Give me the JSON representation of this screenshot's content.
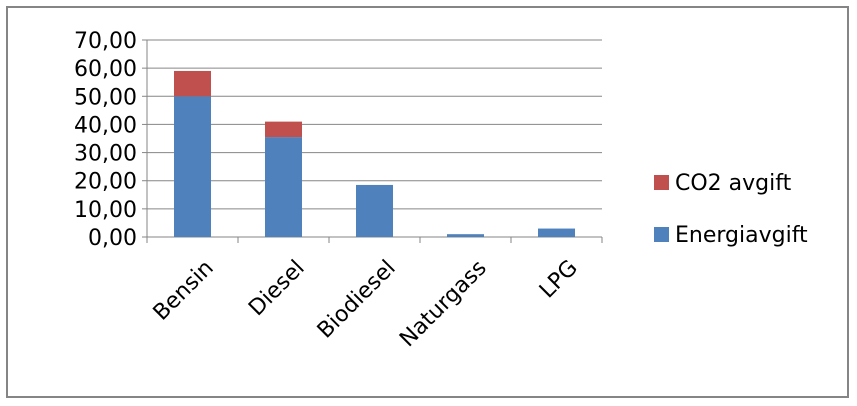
{
  "chart_data": {
    "type": "bar",
    "stacked": true,
    "title": "",
    "xlabel": "",
    "ylabel": "",
    "categories": [
      "Bensin",
      "Diesel",
      "Biodiesel",
      "Naturgass",
      "LPG"
    ],
    "series": [
      {
        "name": "Energiavgift",
        "color": "#4F81BD",
        "values": [
          50.0,
          35.5,
          18.5,
          1.0,
          3.0
        ]
      },
      {
        "name": "CO2 avgift",
        "color": "#C0504D",
        "values": [
          9.0,
          5.5,
          0.0,
          0.0,
          0.0
        ]
      }
    ],
    "yticks": [
      "0,00",
      "10,00",
      "20,00",
      "30,00",
      "40,00",
      "50,00",
      "60,00",
      "70,00"
    ],
    "ylim": [
      0,
      70
    ],
    "grid": true,
    "legend_position": "right",
    "legend_order": [
      "CO2 avgift",
      "Energiavgift"
    ]
  }
}
